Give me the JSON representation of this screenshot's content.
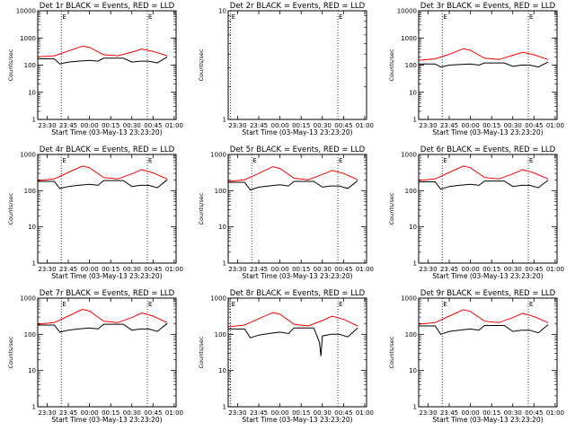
{
  "chart_data": [
    {
      "type": "line",
      "title": "Det 1r BLACK = Events, RED = LLD",
      "ylabel": "Counts/sec",
      "xlabel": "Start Time (03-May-13 23:23:20)",
      "yscale": "log",
      "ylim": [
        1,
        10000
      ],
      "y_ticks": [
        "1",
        "10",
        "100",
        "1000",
        "10000"
      ],
      "x_ticks": [
        "23:30",
        "23:45",
        "00:00",
        "00:15",
        "00:30",
        "00:45",
        "01:00"
      ],
      "vlines": [
        "23:40",
        "00:41"
      ],
      "marker": "E",
      "series": [
        {
          "name": "BLACK = Events",
          "color": "#000000",
          "x": [
            "23:23",
            "23:35",
            "23:39",
            "23:45",
            "23:52",
            "00:00",
            "00:06",
            "00:10",
            "00:18",
            "00:24",
            "00:30",
            "00:36",
            "00:42",
            "00:48",
            "00:55"
          ],
          "values": [
            170,
            170,
            110,
            130,
            140,
            150,
            140,
            180,
            180,
            180,
            130,
            140,
            140,
            120,
            200
          ]
        },
        {
          "name": "RED = LLD",
          "color": "#ff0000",
          "x": [
            "23:23",
            "23:35",
            "23:45",
            "23:55",
            "00:00",
            "00:10",
            "00:20",
            "00:30",
            "00:37",
            "00:45",
            "00:55"
          ],
          "values": [
            200,
            220,
            330,
            500,
            450,
            240,
            220,
            300,
            390,
            320,
            220
          ]
        }
      ]
    },
    {
      "type": "line",
      "title": "Det 2r BLACK = Events, RED = LLD",
      "ylabel": "Counts/sec",
      "xlabel": "Start Time (03-May-13 23:23:20)",
      "yscale": "log",
      "ylim": [
        1,
        10
      ],
      "y_ticks": [
        "1",
        "10"
      ],
      "x_ticks": [
        "23:30",
        "23:45",
        "00:00",
        "00:15",
        "00:30",
        "00:45",
        "01:00"
      ],
      "vlines": [
        "23:25",
        "00:41"
      ],
      "marker": "E",
      "series": []
    },
    {
      "type": "line",
      "title": "Det 3r BLACK = Events, RED = LLD",
      "ylabel": "Counts/sec",
      "xlabel": "Start Time (03-May-13 23:23:20)",
      "yscale": "log",
      "ylim": [
        1,
        10000
      ],
      "y_ticks": [
        "1",
        "10",
        "100",
        "1000",
        "10000"
      ],
      "x_ticks": [
        "23:30",
        "23:45",
        "00:00",
        "00:15",
        "00:30",
        "00:45",
        "01:00"
      ],
      "vlines": [
        "23:40",
        "00:41"
      ],
      "marker": "E",
      "series": [
        {
          "name": "BLACK = Events",
          "color": "#000000",
          "x": [
            "23:23",
            "23:35",
            "23:39",
            "23:45",
            "23:52",
            "00:00",
            "00:06",
            "00:10",
            "00:18",
            "00:24",
            "00:30",
            "00:36",
            "00:42",
            "00:48",
            "00:55"
          ],
          "values": [
            110,
            110,
            85,
            100,
            105,
            110,
            100,
            120,
            120,
            120,
            90,
            100,
            100,
            85,
            130
          ]
        },
        {
          "name": "RED = LLD",
          "color": "#ff0000",
          "x": [
            "23:23",
            "23:35",
            "23:45",
            "23:55",
            "00:00",
            "00:10",
            "00:20",
            "00:30",
            "00:37",
            "00:45",
            "00:55"
          ],
          "values": [
            150,
            170,
            250,
            400,
            350,
            180,
            160,
            230,
            300,
            240,
            160
          ]
        }
      ]
    },
    {
      "type": "line",
      "title": "Det 4r BLACK = Events, RED = LLD",
      "ylabel": "Counts/sec",
      "xlabel": "Start Time (03-May-13 23:23:20)",
      "yscale": "log",
      "ylim": [
        1,
        1000
      ],
      "y_ticks": [
        "1",
        "10",
        "100",
        "1000"
      ],
      "x_ticks": [
        "23:30",
        "23:45",
        "00:00",
        "00:15",
        "00:30",
        "00:45",
        "01:00"
      ],
      "vlines": [
        "23:40",
        "00:41"
      ],
      "marker": "E",
      "series": [
        {
          "name": "BLACK = Events",
          "color": "#000000",
          "x": [
            "23:23",
            "23:35",
            "23:39",
            "23:45",
            "23:52",
            "00:00",
            "00:06",
            "00:10",
            "00:18",
            "00:24",
            "00:30",
            "00:36",
            "00:42",
            "00:48",
            "00:55"
          ],
          "values": [
            180,
            180,
            115,
            130,
            140,
            150,
            140,
            190,
            190,
            190,
            130,
            140,
            140,
            120,
            200
          ]
        },
        {
          "name": "RED = LLD",
          "color": "#ff0000",
          "x": [
            "23:23",
            "23:35",
            "23:45",
            "23:55",
            "00:00",
            "00:10",
            "00:20",
            "00:30",
            "00:37",
            "00:45",
            "00:55"
          ],
          "values": [
            190,
            210,
            320,
            480,
            430,
            230,
            210,
            290,
            380,
            310,
            210
          ]
        }
      ]
    },
    {
      "type": "line",
      "title": "Det 5r BLACK = Events, RED = LLD",
      "ylabel": "Counts/sec",
      "xlabel": "Start Time (03-May-13 23:23:20)",
      "yscale": "log",
      "ylim": [
        1,
        1000
      ],
      "y_ticks": [
        "1",
        "10",
        "100",
        "1000"
      ],
      "x_ticks": [
        "23:30",
        "23:45",
        "00:00",
        "00:15",
        "00:30",
        "00:45",
        "01:00"
      ],
      "vlines": [
        "23:40",
        "00:41"
      ],
      "marker": "E",
      "series": [
        {
          "name": "BLACK = Events",
          "color": "#000000",
          "x": [
            "23:23",
            "23:35",
            "23:39",
            "23:45",
            "23:52",
            "00:00",
            "00:06",
            "00:10",
            "00:18",
            "00:24",
            "00:30",
            "00:36",
            "00:42",
            "00:48",
            "00:55"
          ],
          "values": [
            170,
            170,
            105,
            125,
            135,
            145,
            135,
            180,
            180,
            180,
            125,
            135,
            135,
            115,
            190
          ]
        },
        {
          "name": "RED = LLD",
          "color": "#ff0000",
          "x": [
            "23:23",
            "23:35",
            "23:45",
            "23:55",
            "00:00",
            "00:10",
            "00:20",
            "00:30",
            "00:37",
            "00:45",
            "00:55"
          ],
          "values": [
            180,
            200,
            300,
            460,
            410,
            220,
            200,
            280,
            360,
            300,
            200
          ]
        }
      ]
    },
    {
      "type": "line",
      "title": "Det 6r BLACK = Events, RED = LLD",
      "ylabel": "Counts/sec",
      "xlabel": "Start Time (03-May-13 23:23:20)",
      "yscale": "log",
      "ylim": [
        1,
        1000
      ],
      "y_ticks": [
        "1",
        "10",
        "100",
        "1000"
      ],
      "x_ticks": [
        "23:30",
        "23:45",
        "00:00",
        "00:15",
        "00:30",
        "00:45",
        "01:00"
      ],
      "vlines": [
        "23:40",
        "00:41"
      ],
      "marker": "E",
      "series": [
        {
          "name": "BLACK = Events",
          "color": "#000000",
          "x": [
            "23:23",
            "23:35",
            "23:39",
            "23:45",
            "23:52",
            "00:00",
            "00:06",
            "00:10",
            "00:18",
            "00:24",
            "00:30",
            "00:36",
            "00:42",
            "00:48",
            "00:55"
          ],
          "values": [
            175,
            175,
            110,
            130,
            140,
            150,
            140,
            185,
            185,
            185,
            130,
            140,
            140,
            120,
            195
          ]
        },
        {
          "name": "RED = LLD",
          "color": "#ff0000",
          "x": [
            "23:23",
            "23:35",
            "23:45",
            "23:55",
            "00:00",
            "00:10",
            "00:20",
            "00:30",
            "00:37",
            "00:45",
            "00:55"
          ],
          "values": [
            190,
            210,
            320,
            480,
            430,
            230,
            210,
            290,
            380,
            310,
            210
          ]
        }
      ]
    },
    {
      "type": "line",
      "title": "Det 7r BLACK = Events, RED = LLD",
      "ylabel": "Counts/sec",
      "xlabel": "Start Time (03-May-13 23:23:20)",
      "yscale": "log",
      "ylim": [
        1,
        1000
      ],
      "y_ticks": [
        "1",
        "10",
        "100",
        "1000"
      ],
      "x_ticks": [
        "23:30",
        "23:45",
        "00:00",
        "00:15",
        "00:30",
        "00:45",
        "01:00"
      ],
      "vlines": [
        "23:40",
        "00:41"
      ],
      "marker": "E",
      "series": [
        {
          "name": "BLACK = Events",
          "color": "#000000",
          "x": [
            "23:23",
            "23:35",
            "23:39",
            "23:45",
            "23:52",
            "00:00",
            "00:06",
            "00:10",
            "00:18",
            "00:24",
            "00:30",
            "00:36",
            "00:42",
            "00:48",
            "00:55"
          ],
          "values": [
            180,
            180,
            115,
            130,
            140,
            150,
            140,
            190,
            190,
            190,
            130,
            140,
            140,
            120,
            200
          ]
        },
        {
          "name": "RED = LLD",
          "color": "#ff0000",
          "x": [
            "23:23",
            "23:35",
            "23:45",
            "23:55",
            "00:00",
            "00:10",
            "00:20",
            "00:30",
            "00:37",
            "00:45",
            "00:55"
          ],
          "values": [
            190,
            210,
            320,
            490,
            440,
            230,
            210,
            290,
            390,
            320,
            210
          ]
        }
      ]
    },
    {
      "type": "line",
      "title": "Det 8r BLACK = Events, RED = LLD",
      "ylabel": "Counts/sec",
      "xlabel": "Start Time (03-May-13 23:23:20)",
      "yscale": "log",
      "ylim": [
        1,
        1000
      ],
      "y_ticks": [
        "1",
        "10",
        "100",
        "1000"
      ],
      "x_ticks": [
        "23:30",
        "23:45",
        "00:00",
        "00:15",
        "00:30",
        "00:45",
        "01:00"
      ],
      "vlines": [
        "23:25",
        "00:41"
      ],
      "marker": "E",
      "series": [
        {
          "name": "BLACK = Events",
          "color": "#000000",
          "x": [
            "23:23",
            "23:35",
            "23:39",
            "23:45",
            "23:52",
            "00:00",
            "00:06",
            "00:10",
            "00:18",
            "00:24",
            "00:28",
            "00:29",
            "00:30",
            "00:36",
            "00:42",
            "00:48",
            "00:55"
          ],
          "values": [
            140,
            140,
            80,
            95,
            105,
            115,
            105,
            150,
            150,
            150,
            60,
            25,
            90,
            100,
            100,
            85,
            150
          ]
        },
        {
          "name": "RED = LLD",
          "color": "#ff0000",
          "x": [
            "23:23",
            "23:35",
            "23:45",
            "23:55",
            "00:00",
            "00:10",
            "00:20",
            "00:30",
            "00:37",
            "00:45",
            "00:55"
          ],
          "values": [
            160,
            180,
            270,
            400,
            360,
            190,
            170,
            240,
            320,
            260,
            170
          ]
        }
      ]
    },
    {
      "type": "line",
      "title": "Det 9r BLACK = Events, RED = LLD",
      "ylabel": "Counts/sec",
      "xlabel": "Start Time (03-May-13 23:23:20)",
      "yscale": "log",
      "ylim": [
        1,
        1000
      ],
      "y_ticks": [
        "1",
        "10",
        "100",
        "1000"
      ],
      "x_ticks": [
        "23:30",
        "23:45",
        "00:00",
        "00:15",
        "00:30",
        "00:45",
        "01:00"
      ],
      "vlines": [
        "23:40",
        "00:41"
      ],
      "marker": "E",
      "series": [
        {
          "name": "BLACK = Events",
          "color": "#000000",
          "x": [
            "23:23",
            "23:35",
            "23:39",
            "23:45",
            "23:52",
            "00:00",
            "00:06",
            "00:10",
            "00:18",
            "00:24",
            "00:30",
            "00:36",
            "00:42",
            "00:48",
            "00:55"
          ],
          "values": [
            170,
            170,
            100,
            120,
            130,
            140,
            130,
            175,
            175,
            175,
            120,
            130,
            130,
            110,
            185
          ]
        },
        {
          "name": "RED = LLD",
          "color": "#ff0000",
          "x": [
            "23:23",
            "23:35",
            "23:45",
            "23:55",
            "00:00",
            "00:10",
            "00:20",
            "00:30",
            "00:37",
            "00:45",
            "00:55"
          ],
          "values": [
            190,
            210,
            320,
            480,
            430,
            230,
            210,
            290,
            380,
            310,
            210
          ]
        }
      ]
    }
  ]
}
